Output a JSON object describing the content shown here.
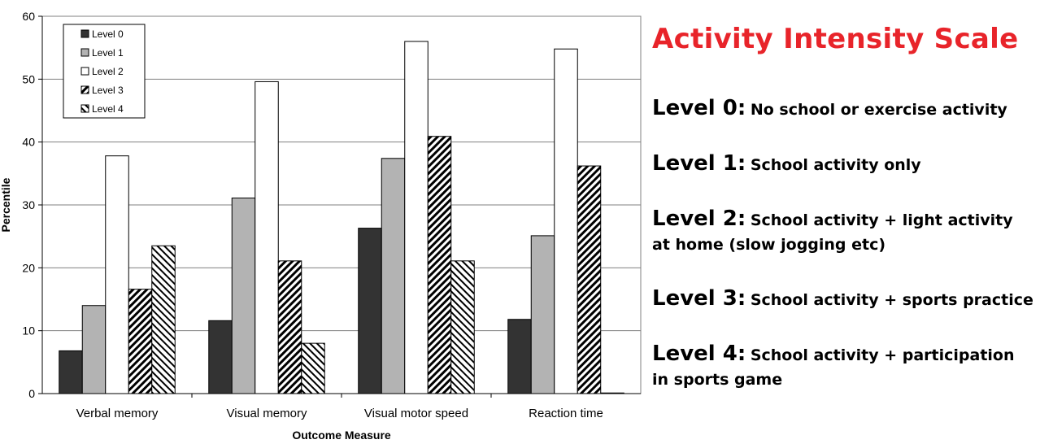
{
  "chart_data": {
    "type": "bar",
    "title": "",
    "xlabel": "Outcome Measure",
    "ylabel": "Percentile",
    "ylim": [
      0,
      60
    ],
    "yticks": [
      0,
      10,
      20,
      30,
      40,
      50,
      60
    ],
    "grid": true,
    "legend_position": "top-left",
    "categories": [
      "Verbal memory",
      "Visual memory",
      "Visual motor speed",
      "Reaction time"
    ],
    "series": [
      {
        "name": "Level 0",
        "values": [
          6.8,
          11.6,
          26.3,
          11.8
        ]
      },
      {
        "name": "Level 1",
        "values": [
          14.0,
          31.1,
          37.4,
          25.1
        ]
      },
      {
        "name": "Level 2",
        "values": [
          37.8,
          49.6,
          56.0,
          54.8
        ]
      },
      {
        "name": "Level 3",
        "values": [
          16.6,
          21.1,
          40.9,
          36.2
        ]
      },
      {
        "name": "Level 4",
        "values": [
          23.5,
          8.0,
          21.1,
          0.1
        ]
      }
    ]
  },
  "scale": {
    "title": "Activity Intensity Scale",
    "levels": [
      {
        "name": "Level 0:",
        "desc": "No school or exercise activity",
        "cont": ""
      },
      {
        "name": "Level 1:",
        "desc": "School activity only",
        "cont": ""
      },
      {
        "name": "Level 2:",
        "desc": "School activity + light activity",
        "cont": "at home (slow jogging etc)"
      },
      {
        "name": "Level 3:",
        "desc": "School activity + sports practice",
        "cont": ""
      },
      {
        "name": "Level 4:",
        "desc": "School activity + participation",
        "cont": "in sports game"
      }
    ]
  }
}
